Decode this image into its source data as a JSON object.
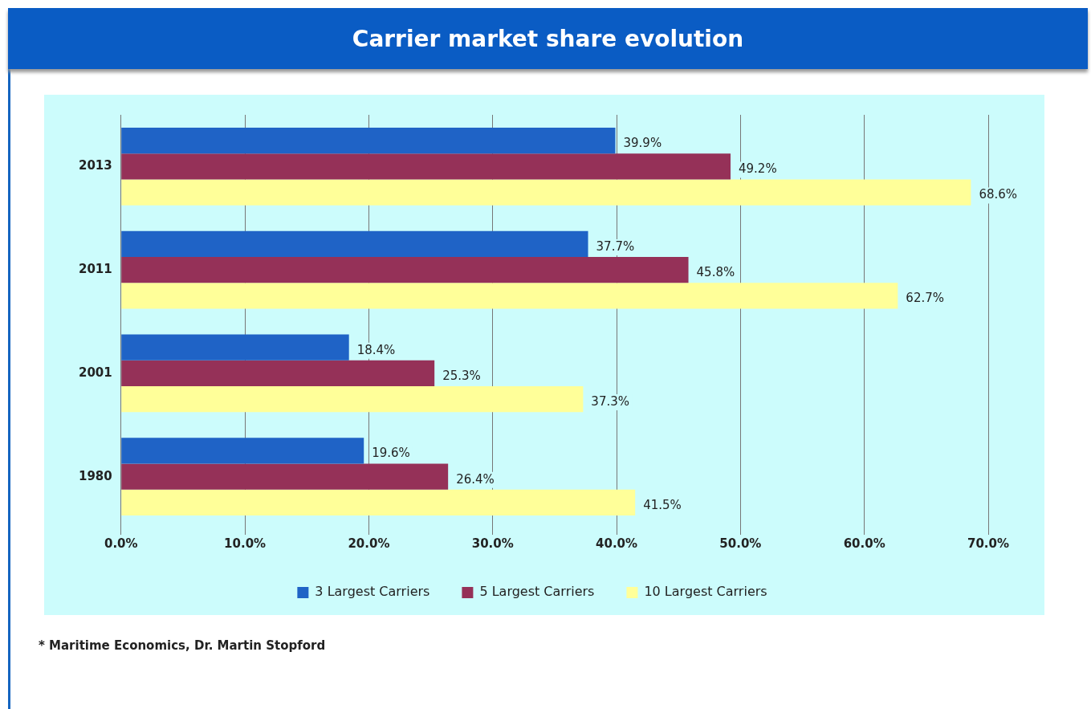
{
  "chart_data": {
    "type": "bar",
    "orientation": "horizontal",
    "title": "Carrier market share evolution",
    "categories": [
      "2013",
      "2011",
      "2001",
      "1980"
    ],
    "series": [
      {
        "name": "3 Largest Carriers",
        "color": "#1f63c6",
        "values": [
          39.9,
          37.7,
          18.4,
          19.6
        ],
        "value_labels": [
          "39.9%",
          "37.7%",
          "18.4%",
          "19.6%"
        ]
      },
      {
        "name": "5 Largest Carriers",
        "color": "#953158",
        "values": [
          49.2,
          45.8,
          25.3,
          26.4
        ],
        "value_labels": [
          "49.2%",
          "45.8%",
          "25.3%",
          "26.4%"
        ]
      },
      {
        "name": "10 Largest Carriers",
        "color": "#ffff99",
        "values": [
          68.6,
          62.7,
          37.3,
          41.5
        ],
        "value_labels": [
          "68.6%",
          "62.7%",
          "37.3%",
          "41.5%"
        ]
      }
    ],
    "xlim": [
      0,
      70
    ],
    "xticks": [
      {
        "value": 0,
        "label": "0.0%"
      },
      {
        "value": 10,
        "label": "10.0%"
      },
      {
        "value": 20,
        "label": "20.0%"
      },
      {
        "value": 30,
        "label": "30.0%"
      },
      {
        "value": 40,
        "label": "40.0%"
      },
      {
        "value": 50,
        "label": "50.0%"
      },
      {
        "value": 60,
        "label": "60.0%"
      },
      {
        "value": 70,
        "label": "70.0%"
      }
    ],
    "grid": "x",
    "legend": "bottom",
    "annotations": [
      "* Maritime Economics, Dr. Martin Stopford"
    ]
  }
}
